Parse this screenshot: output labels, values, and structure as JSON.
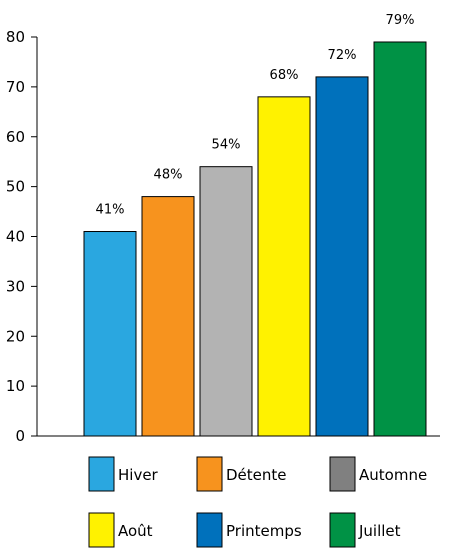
{
  "chart_data": {
    "type": "bar",
    "title": "",
    "xlabel": "",
    "ylabel": "",
    "ylim": [
      0,
      80
    ],
    "yticks": [
      0,
      10,
      20,
      30,
      40,
      50,
      60,
      70,
      80
    ],
    "grid": false,
    "legend_position": "bottom",
    "categories": [
      "Hiver",
      "Détente",
      "Automne",
      "Août",
      "Printemps",
      "Juillet"
    ],
    "values": [
      41,
      48,
      54,
      68,
      72,
      79
    ],
    "data_labels": [
      "41%",
      "48%",
      "54%",
      "68%",
      "72%",
      "79%"
    ],
    "bar_colors": [
      "#2aa7e0",
      "#f7931e",
      "#b3b3b3",
      "#fff200",
      "#0071bc",
      "#009245"
    ],
    "legend": [
      {
        "label": "Hiver",
        "color": "#2aa7e0"
      },
      {
        "label": "Détente",
        "color": "#f7931e"
      },
      {
        "label": "Automne",
        "color": "#808080"
      },
      {
        "label": "Août",
        "color": "#fff200"
      },
      {
        "label": "Printemps",
        "color": "#0071bc"
      },
      {
        "label": "Juillet",
        "color": "#009245"
      }
    ]
  }
}
